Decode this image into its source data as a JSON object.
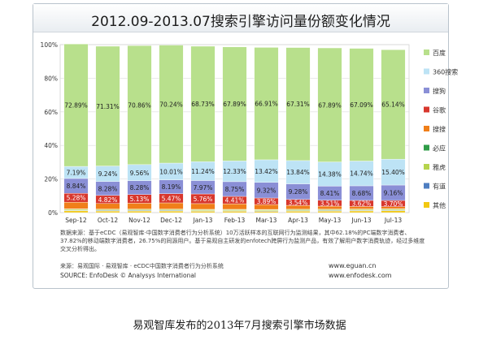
{
  "chart_data": {
    "type": "bar",
    "stacked": true,
    "title": "2012.09-2013.07搜索引擎访问量份额变化情况",
    "categories": [
      "Sep-12",
      "Oct-12",
      "Nov-12",
      "Dec-12",
      "Jan-13",
      "Feb-13",
      "Mar-13",
      "Apr-13",
      "May-13",
      "Jun-13",
      "Jul-13"
    ],
    "ylim": [
      0,
      100
    ],
    "yticks": [
      "0%",
      "20%",
      "40%",
      "60%",
      "80%",
      "100%"
    ],
    "legend_position": "right",
    "series": [
      {
        "name": "其他",
        "color": "#f2c811",
        "values": [
          1.05,
          0.95,
          0.95,
          0.95,
          0.8,
          0.8,
          0.75,
          0.85,
          0.9,
          1.0,
          1.1
        ],
        "labels": []
      },
      {
        "name": "有道",
        "color": "#4e7ec1",
        "values": [
          0.35,
          0.35,
          0.35,
          0.35,
          0.35,
          0.35,
          0.35,
          0.35,
          0.35,
          0.35,
          0.35
        ],
        "labels": []
      },
      {
        "name": "雅虎",
        "color": "#b6d44d",
        "values": [
          0.6,
          0.6,
          0.6,
          0.6,
          0.6,
          0.6,
          0.6,
          0.6,
          0.6,
          0.6,
          0.6
        ],
        "labels": []
      },
      {
        "name": "必应",
        "color": "#2f9c48",
        "values": [
          0.2,
          0.2,
          0.2,
          0.2,
          0.2,
          0.2,
          0.2,
          0.2,
          0.2,
          0.2,
          0.2
        ],
        "labels": []
      },
      {
        "name": "搜搜",
        "color": "#f07f19",
        "values": [
          4.0,
          3.3,
          3.5,
          3.7,
          3.4,
          3.3,
          2.9,
          2.3,
          1.8,
          1.5,
          1.3
        ],
        "labels": []
      },
      {
        "name": "谷歌",
        "color": "#d8372d",
        "values": [
          5.28,
          4.82,
          5.13,
          5.47,
          5.76,
          4.41,
          3.89,
          3.54,
          3.51,
          3.62,
          3.7
        ],
        "labels": [
          "5.28%",
          "4.82%",
          "5.13%",
          "5.47%",
          "5.76%",
          "4.41%",
          "3.89%",
          "3.54%",
          "3.51%",
          "3.62%",
          "3.70%"
        ]
      },
      {
        "name": "搜狗",
        "color": "#8a8fd6",
        "values": [
          8.84,
          8.28,
          8.28,
          8.19,
          7.97,
          8.75,
          9.32,
          9.28,
          8.41,
          8.68,
          9.16
        ],
        "labels": [
          "8.84%",
          "8.28%",
          "8.28%",
          "8.19%",
          "7.97%",
          "8.75%",
          "9.32%",
          "9.28%",
          "8.41%",
          "8.68%",
          "9.16%"
        ]
      },
      {
        "name": "360搜索",
        "color": "#bde3f5",
        "values": [
          7.19,
          9.24,
          9.56,
          10.01,
          11.24,
          12.33,
          13.42,
          13.84,
          14.38,
          14.74,
          15.4
        ],
        "labels": [
          "7.19%",
          "9.24%",
          "9.56%",
          "10.01%",
          "11.24%",
          "12.33%",
          "13.42%",
          "13.84%",
          "14.38%",
          "14.74%",
          "15.40%"
        ]
      },
      {
        "name": "百度",
        "color": "#b8e08c",
        "values": [
          72.89,
          71.31,
          70.86,
          70.24,
          68.73,
          67.89,
          66.91,
          67.31,
          67.89,
          67.09,
          65.14
        ],
        "labels": [
          "72.89%",
          "71.31%",
          "70.86%",
          "70.24%",
          "68.73%",
          "67.89%",
          "66.91%",
          "67.31%",
          "67.89%",
          "67.09%",
          "65.14%"
        ]
      }
    ],
    "legend_order": [
      "百度",
      "360搜索",
      "搜狗",
      "谷歌",
      "搜搜",
      "必应",
      "雅虎",
      "有道",
      "其他"
    ]
  },
  "notes": "数据来源：基于eCDC（易观智库·中国数字消费者行为分析系统）10万活跃样本的互联网行为监测结果，其中62.18%的PC端数字消费者、37.82%的移动端数字消费者，26.75%的同源用户。基于易观自主研发的enfotech跨屏行为监测产品，有效了解用户数字消费轨迹，经过多维度交叉分析得出。",
  "source_zh": "来源：易观国际 · 易观智库 · eCDC中国数字消费者行为分析系统",
  "source_en": "SOURCE: EnfoDesk © Analysys International",
  "site_1": "www.eguan.cn",
  "site_2": "www.enfodesk.com",
  "caption": "易观智库发布的2013年7月搜索引擎市场数据"
}
